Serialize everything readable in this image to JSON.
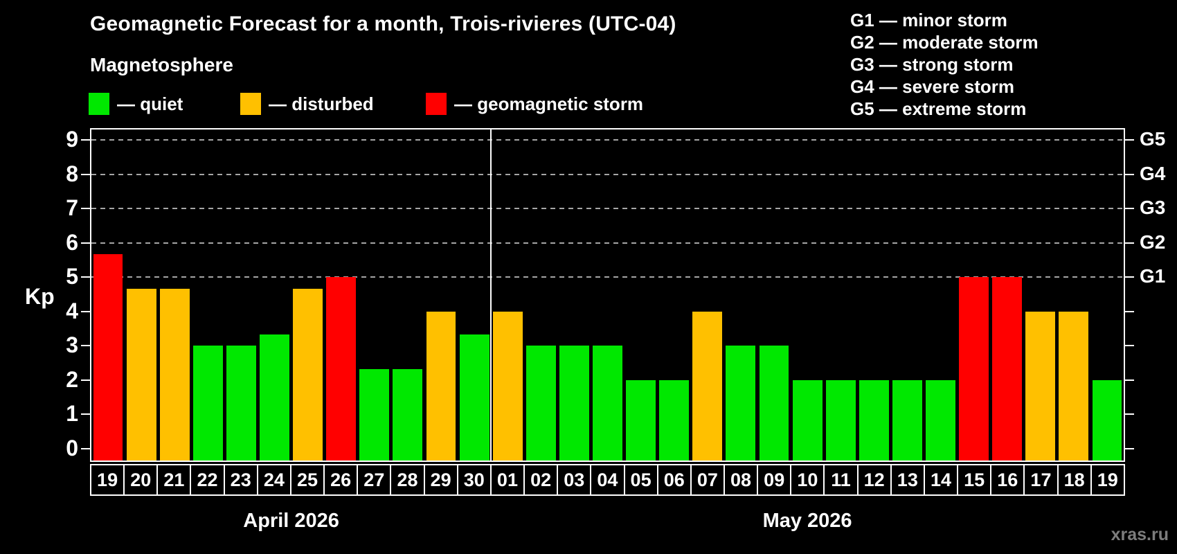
{
  "header": {
    "title": "Geomagnetic Forecast for a month, Trois-rivieres (UTC-04)",
    "subtitle": "Magnetosphere"
  },
  "status_legend": [
    {
      "key": "quiet",
      "label": "— quiet"
    },
    {
      "key": "disturbed",
      "label": "— disturbed"
    },
    {
      "key": "storm",
      "label": "— geomagnetic storm"
    }
  ],
  "g_scale_legend": [
    "G1 — minor storm",
    "G2 — moderate storm",
    "G3 — strong storm",
    "G4 — severe storm",
    "G5 — extreme storm"
  ],
  "watermark": "xras.ru",
  "chart_data": {
    "type": "bar",
    "title": "Geomagnetic Forecast for a month, Trois-rivieres (UTC-04)",
    "ylabel": "Kp",
    "ylim": [
      0,
      9
    ],
    "y_ticks": [
      0,
      1,
      2,
      3,
      4,
      5,
      6,
      7,
      8,
      9
    ],
    "grid_levels": [
      5,
      6,
      7,
      8,
      9
    ],
    "grid": "dashed horizontal lines at Kp 5-9 only",
    "legend_position": "top",
    "right_axis_labels": [
      {
        "text": "G1",
        "level": 5
      },
      {
        "text": "G2",
        "level": 6
      },
      {
        "text": "G3",
        "level": 7
      },
      {
        "text": "G4",
        "level": 8
      },
      {
        "text": "G5",
        "level": 9
      }
    ],
    "status_colors": {
      "quiet": "#00e800",
      "disturbed": "#ffc000",
      "storm": "#ff0000"
    },
    "groups": [
      {
        "label": "April 2026",
        "bars": [
          {
            "day": "19",
            "value": 5.67,
            "status": "storm"
          },
          {
            "day": "20",
            "value": 4.67,
            "status": "disturbed"
          },
          {
            "day": "21",
            "value": 4.67,
            "status": "disturbed"
          },
          {
            "day": "22",
            "value": 3.0,
            "status": "quiet"
          },
          {
            "day": "23",
            "value": 3.0,
            "status": "quiet"
          },
          {
            "day": "24",
            "value": 3.33,
            "status": "quiet"
          },
          {
            "day": "25",
            "value": 4.67,
            "status": "disturbed"
          },
          {
            "day": "26",
            "value": 5.0,
            "status": "storm"
          },
          {
            "day": "27",
            "value": 2.33,
            "status": "quiet"
          },
          {
            "day": "28",
            "value": 2.33,
            "status": "quiet"
          },
          {
            "day": "29",
            "value": 4.0,
            "status": "disturbed"
          },
          {
            "day": "30",
            "value": 3.33,
            "status": "quiet"
          }
        ]
      },
      {
        "label": "May 2026",
        "bars": [
          {
            "day": "01",
            "value": 4.0,
            "status": "disturbed"
          },
          {
            "day": "02",
            "value": 3.0,
            "status": "quiet"
          },
          {
            "day": "03",
            "value": 3.0,
            "status": "quiet"
          },
          {
            "day": "04",
            "value": 3.0,
            "status": "quiet"
          },
          {
            "day": "05",
            "value": 2.0,
            "status": "quiet"
          },
          {
            "day": "06",
            "value": 2.0,
            "status": "quiet"
          },
          {
            "day": "07",
            "value": 4.0,
            "status": "disturbed"
          },
          {
            "day": "08",
            "value": 3.0,
            "status": "quiet"
          },
          {
            "day": "09",
            "value": 3.0,
            "status": "quiet"
          },
          {
            "day": "10",
            "value": 2.0,
            "status": "quiet"
          },
          {
            "day": "11",
            "value": 2.0,
            "status": "quiet"
          },
          {
            "day": "12",
            "value": 2.0,
            "status": "quiet"
          },
          {
            "day": "13",
            "value": 2.0,
            "status": "quiet"
          },
          {
            "day": "14",
            "value": 2.0,
            "status": "quiet"
          },
          {
            "day": "15",
            "value": 5.0,
            "status": "storm"
          },
          {
            "day": "16",
            "value": 5.0,
            "status": "storm"
          },
          {
            "day": "17",
            "value": 4.0,
            "status": "disturbed"
          },
          {
            "day": "18",
            "value": 4.0,
            "status": "disturbed"
          },
          {
            "day": "19",
            "value": 2.0,
            "status": "quiet"
          }
        ]
      }
    ]
  }
}
